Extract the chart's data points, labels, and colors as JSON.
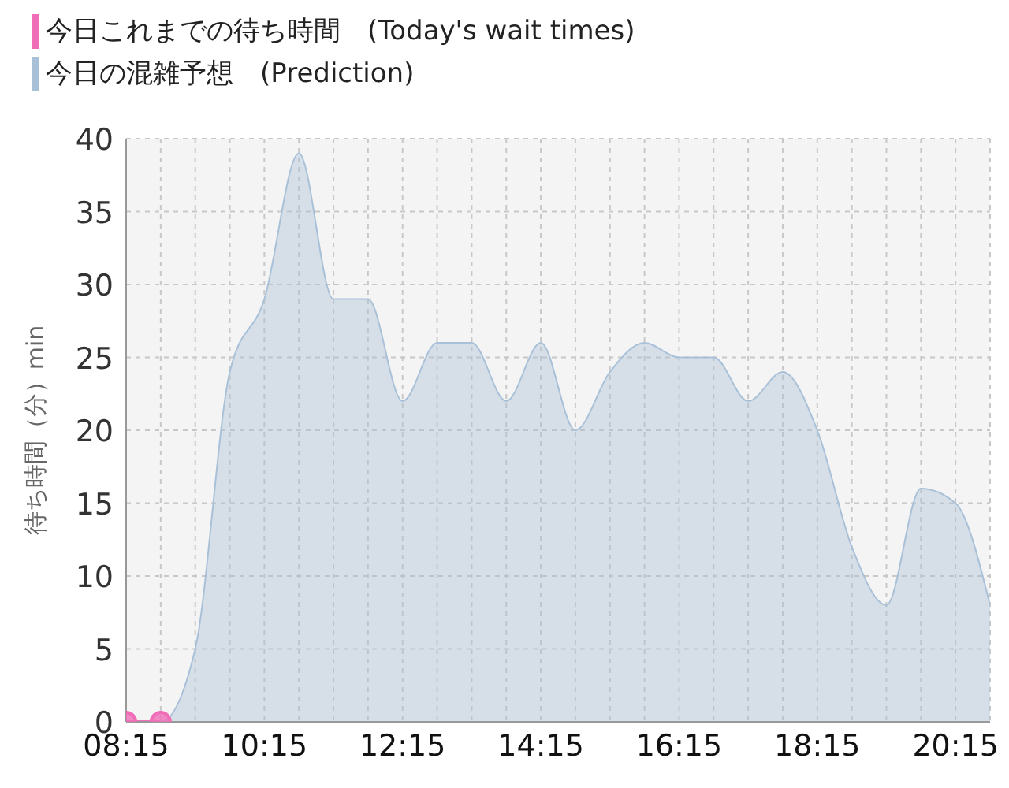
{
  "chart_data": {
    "type": "area",
    "ylabel": "待ち時間（分）min",
    "x": [
      8.25,
      8.75,
      9.25,
      9.75,
      10.25,
      10.75,
      11.25,
      11.75,
      12.25,
      12.75,
      13.25,
      13.75,
      14.25,
      14.75,
      15.25,
      15.75,
      16.25,
      16.75,
      17.25,
      17.75,
      18.25,
      18.75,
      19.25,
      19.75,
      20.25,
      20.75
    ],
    "series": [
      {
        "name": "今日これまでの待ち時間　(Today's wait times)",
        "type": "line",
        "marker": "circle",
        "color": "#f06eb8",
        "x": [
          8.25,
          8.75
        ],
        "values": [
          0,
          0
        ]
      },
      {
        "name": "今日の混雑予想　(Prediction)",
        "color": "#a9c1d8",
        "values": [
          0,
          0,
          5,
          24,
          29,
          39,
          29,
          29,
          22,
          26,
          26,
          22,
          26,
          20,
          24,
          26,
          25,
          25,
          22,
          24,
          20,
          12,
          8,
          16,
          15,
          8
        ]
      }
    ],
    "xlim": [
      8.25,
      20.75
    ],
    "xticks": [
      {
        "value": 8.25,
        "label": "08:15"
      },
      {
        "value": 8.75,
        "label": null
      },
      {
        "value": 9.25,
        "label": null
      },
      {
        "value": 9.75,
        "label": null
      },
      {
        "value": 10.25,
        "label": "10:15"
      },
      {
        "value": 10.75,
        "label": null
      },
      {
        "value": 11.25,
        "label": null
      },
      {
        "value": 11.75,
        "label": null
      },
      {
        "value": 12.25,
        "label": "12:15"
      },
      {
        "value": 12.75,
        "label": null
      },
      {
        "value": 13.25,
        "label": null
      },
      {
        "value": 13.75,
        "label": null
      },
      {
        "value": 14.25,
        "label": "14:15"
      },
      {
        "value": 14.75,
        "label": null
      },
      {
        "value": 15.25,
        "label": null
      },
      {
        "value": 15.75,
        "label": null
      },
      {
        "value": 16.25,
        "label": "16:15"
      },
      {
        "value": 16.75,
        "label": null
      },
      {
        "value": 17.25,
        "label": null
      },
      {
        "value": 17.75,
        "label": null
      },
      {
        "value": 18.25,
        "label": "18:15"
      },
      {
        "value": 18.75,
        "label": null
      },
      {
        "value": 19.25,
        "label": null
      },
      {
        "value": 19.75,
        "label": null
      },
      {
        "value": 20.25,
        "label": "20:15"
      },
      {
        "value": 20.75,
        "label": null
      }
    ],
    "ylim": [
      0,
      40
    ],
    "yticks": [
      0,
      5,
      10,
      15,
      20,
      25,
      30,
      35,
      40
    ],
    "grid": true,
    "legend": "top left"
  }
}
